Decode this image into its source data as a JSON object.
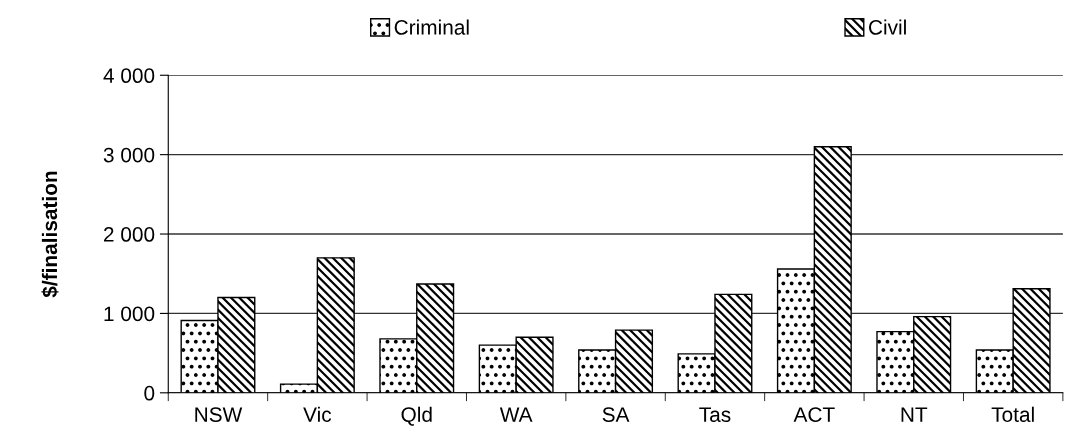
{
  "chart_data": {
    "type": "bar",
    "ylabel": "$/finalisation",
    "categories": [
      "NSW",
      "Vic",
      "Qld",
      "WA",
      "SA",
      "Tas",
      "ACT",
      "NT",
      "Total"
    ],
    "series": [
      {
        "name": "Criminal",
        "color": "#000000",
        "values": [
          910,
          110,
          680,
          600,
          540,
          490,
          1560,
          770,
          540
        ]
      },
      {
        "name": "Civil",
        "color": "#000000",
        "values": [
          1200,
          1700,
          1370,
          700,
          790,
          1240,
          3100,
          960,
          1310
        ]
      }
    ],
    "ylim": [
      0,
      4000
    ],
    "yticks": [
      {
        "value": 0,
        "label": "0"
      },
      {
        "value": 1000,
        "label": "1 000"
      },
      {
        "value": 2000,
        "label": "2 000"
      },
      {
        "value": 3000,
        "label": "3 000"
      },
      {
        "value": 4000,
        "label": "4 000"
      }
    ],
    "grid": "y",
    "legend": "top"
  }
}
